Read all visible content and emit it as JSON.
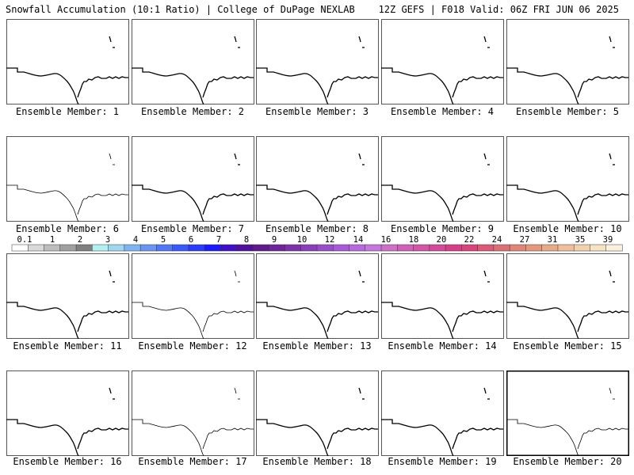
{
  "header": {
    "left": "Snowfall Accumulation (10:1 Ratio) | College of DuPage NEXLAB",
    "right": "12Z GEFS | F018 Valid: 06Z FRI JUN 06 2025"
  },
  "panels": [
    {
      "label": "Ensemble Member: 1"
    },
    {
      "label": "Ensemble Member: 2"
    },
    {
      "label": "Ensemble Member: 3"
    },
    {
      "label": "Ensemble Member: 4"
    },
    {
      "label": "Ensemble Member: 5"
    },
    {
      "label": "Ensemble Member: 6"
    },
    {
      "label": "Ensemble Member: 7"
    },
    {
      "label": "Ensemble Member: 8"
    },
    {
      "label": "Ensemble Member: 9"
    },
    {
      "label": "Ensemble Member: 10"
    },
    {
      "label": "Ensemble Member: 11"
    },
    {
      "label": "Ensemble Member: 12"
    },
    {
      "label": "Ensemble Member: 13"
    },
    {
      "label": "Ensemble Member: 14"
    },
    {
      "label": "Ensemble Member: 15"
    },
    {
      "label": "Ensemble Member: 16"
    },
    {
      "label": "Ensemble Member: 17"
    },
    {
      "label": "Ensemble Member: 18"
    },
    {
      "label": "Ensemble Member: 19"
    },
    {
      "label": "Ensemble Member: 20"
    }
  ],
  "colorbar": {
    "labels": [
      "0.1",
      "1",
      "2",
      "3",
      "4",
      "5",
      "6",
      "7",
      "8",
      "9",
      "10",
      "12",
      "14",
      "16",
      "18",
      "20",
      "22",
      "24",
      "27",
      "31",
      "35",
      "39"
    ],
    "colors": [
      "#ffffff",
      "#d9d9d9",
      "#bdbdbd",
      "#a0a0a0",
      "#808080",
      "#b3f0f0",
      "#9fd6f0",
      "#7fb4f2",
      "#6a94f2",
      "#5077f5",
      "#3a5af7",
      "#2a3cf9",
      "#1a1afb",
      "#3f10c8",
      "#50109b",
      "#601a8a",
      "#6e259a",
      "#7c32aa",
      "#8a3fba",
      "#9a4cca",
      "#aa5ad8",
      "#b868dd",
      "#c477dd",
      "#cc70c8",
      "#d060b8",
      "#d255a8",
      "#d34a98",
      "#d44088",
      "#d8457a",
      "#da5a78",
      "#dc6f76",
      "#e08578",
      "#e4987e",
      "#e8ab88",
      "#eebf9a",
      "#f2d2ae",
      "#f6e2c4",
      "#faf0dc"
    ]
  }
}
